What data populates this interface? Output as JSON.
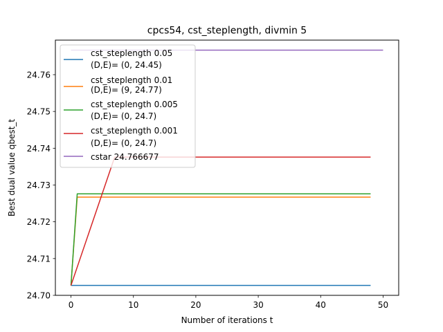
{
  "chart_data": {
    "type": "line",
    "title": "cpcs54, cst_steplength, divmin 5",
    "xlabel": "Number of iterations t",
    "ylabel": "Best dual value qbest_t",
    "xlim": [
      -2.5,
      52.5
    ],
    "ylim": [
      24.7,
      24.7694
    ],
    "xticks": [
      0,
      10,
      20,
      30,
      40,
      50
    ],
    "yticks": [
      24.7,
      24.71,
      24.72,
      24.73,
      24.74,
      24.75,
      24.76
    ],
    "xtick_labels": [
      "0",
      "10",
      "20",
      "30",
      "40",
      "50"
    ],
    "ytick_labels": [
      "24.70",
      "24.71",
      "24.72",
      "24.73",
      "24.74",
      "24.75",
      "24.76"
    ],
    "grid": false,
    "legend_position": "top-left",
    "series": [
      {
        "name": "cst_steplength 0.05",
        "subname": "(D,E)= (0, 24.45)",
        "color": "#1f77b4",
        "x": [
          0,
          48
        ],
        "y": [
          24.7027,
          24.7027
        ]
      },
      {
        "name": "cst_steplength 0.01",
        "subname": "(D,E)= (9, 24.77)",
        "color": "#ff7f0e",
        "x": [
          0,
          1,
          48
        ],
        "y": [
          24.7027,
          24.7267,
          24.7267
        ]
      },
      {
        "name": "cst_steplength 0.005",
        "subname": "(D,E)= (0, 24.7)",
        "color": "#2ca02c",
        "x": [
          0,
          1,
          48
        ],
        "y": [
          24.7027,
          24.7276,
          24.7276
        ]
      },
      {
        "name": "cst_steplength 0.001",
        "subname": "(D,E)= (0, 24.7)",
        "color": "#d62728",
        "x": [
          0,
          7,
          48
        ],
        "y": [
          24.7027,
          24.7376,
          24.7376
        ]
      },
      {
        "name": "cstar 24.766677",
        "subname": "",
        "color": "#9467bd",
        "x": [
          0,
          50
        ],
        "y": [
          24.766677,
          24.766677
        ]
      }
    ]
  }
}
